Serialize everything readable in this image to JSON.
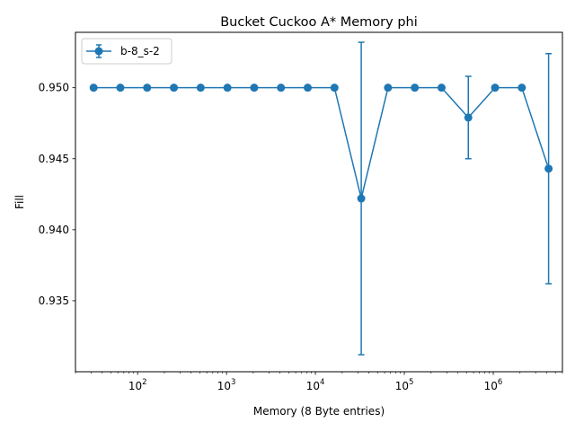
{
  "chart_data": {
    "type": "line",
    "title": "Bucket Cuckoo A* Memory phi",
    "xlabel": "Memory (8 Byte entries)",
    "ylabel": "Fill",
    "xscale": "log",
    "xlim": [
      20,
      6000000
    ],
    "ylim": [
      0.93,
      0.9539
    ],
    "x_tick_exponents": [
      2,
      3,
      4,
      5,
      6
    ],
    "y_ticks": [
      "0.935",
      "0.940",
      "0.945",
      "0.950"
    ],
    "grid": false,
    "legend_position": "top-left",
    "series": [
      {
        "name": "b-8_s-2",
        "color": "#1f77b4",
        "marker": "circle",
        "error_bars": true,
        "x": [
          32,
          64,
          128,
          256,
          512,
          1024,
          2048,
          4096,
          8192,
          16384,
          32768,
          65536,
          131072,
          262144,
          524288,
          1048576,
          2097152,
          4194304
        ],
        "y": [
          0.95,
          0.95,
          0.95,
          0.95,
          0.95,
          0.95,
          0.95,
          0.95,
          0.95,
          0.95,
          0.9422,
          0.95,
          0.95,
          0.95,
          0.9479,
          0.95,
          0.95,
          0.9443
        ],
        "err": [
          0,
          0,
          0,
          0,
          0,
          0,
          0,
          0,
          0,
          0,
          0.011,
          0,
          0,
          0,
          0.0029,
          0,
          0,
          0.0081
        ]
      }
    ]
  }
}
